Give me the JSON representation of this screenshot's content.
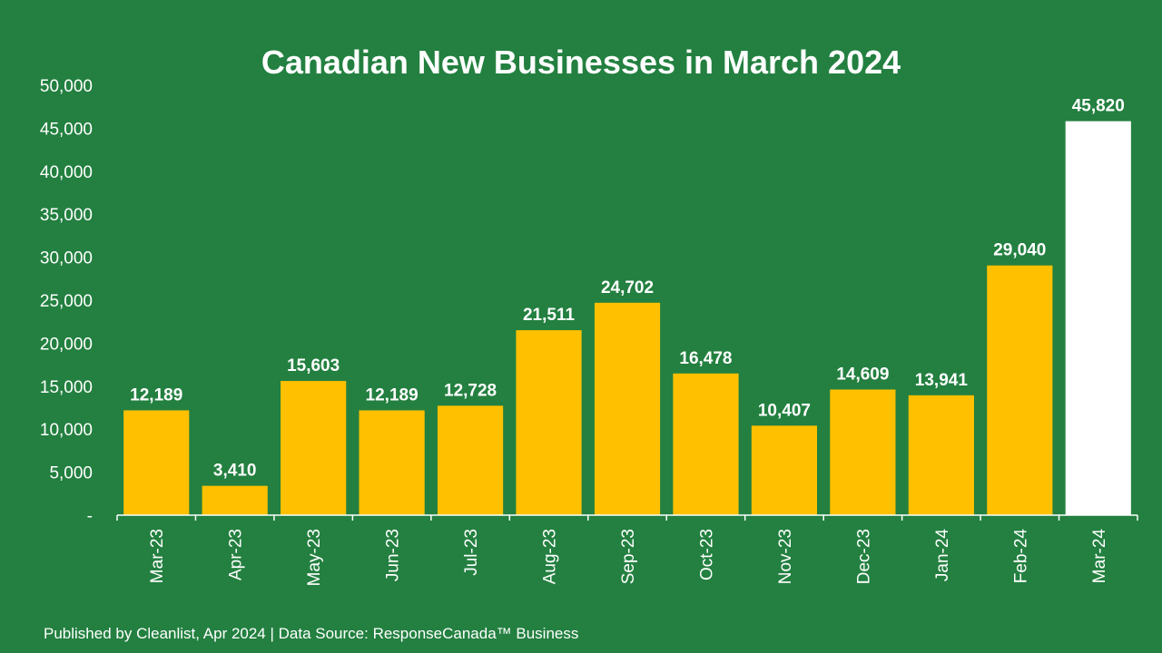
{
  "footer": "Published by Cleanlist, Apr 2024 | Data Source: ResponseCanada™ Business",
  "colors": {
    "background": "#238040",
    "bar": "#FFC000",
    "highlight_bar": "#FFFFFF",
    "text": "#FFFFFF"
  },
  "chart_data": {
    "type": "bar",
    "title": "Canadian New Businesses in March 2024",
    "xlabel": "",
    "ylabel": "",
    "categories": [
      "Mar-23",
      "Apr-23",
      "May-23",
      "Jun-23",
      "Jul-23",
      "Aug-23",
      "Sep-23",
      "Oct-23",
      "Nov-23",
      "Dec-23",
      "Jan-24",
      "Feb-24",
      "Mar-24"
    ],
    "values": [
      12189,
      3410,
      15603,
      12189,
      12728,
      21511,
      24702,
      16478,
      10407,
      14609,
      13941,
      29040,
      45820
    ],
    "value_labels": [
      "12,189",
      "3,410",
      "15,603",
      "12,189",
      "12,728",
      "21,511",
      "24,702",
      "16,478",
      "10,407",
      "14,609",
      "13,941",
      "29,040",
      "45,820"
    ],
    "highlight_category": "Mar-24",
    "ylim": [
      0,
      50000
    ],
    "yticks": [
      0,
      5000,
      10000,
      15000,
      20000,
      25000,
      30000,
      35000,
      40000,
      45000,
      50000
    ],
    "ytick_labels": [
      "-",
      "5,000",
      "10,000",
      "15,000",
      "20,000",
      "25,000",
      "30,000",
      "35,000",
      "40,000",
      "45,000",
      "50,000"
    ],
    "grid": false,
    "legend": "none"
  }
}
